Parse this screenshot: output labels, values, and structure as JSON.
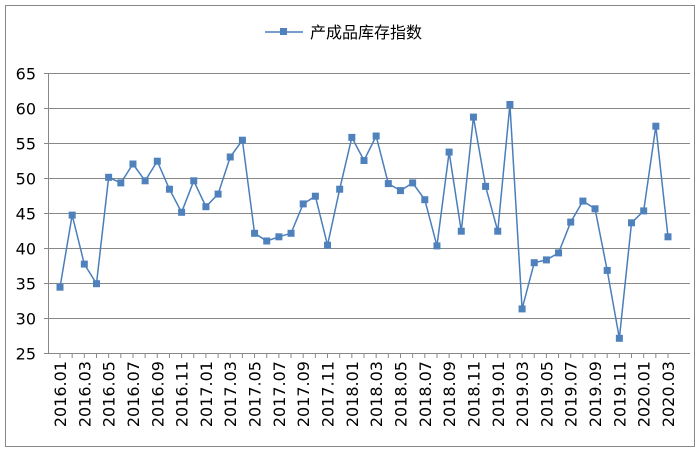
{
  "chart_data": {
    "type": "line",
    "title": "",
    "legend": [
      {
        "name": "产成品库存指数",
        "position": "top"
      }
    ],
    "xlabel": "",
    "ylabel": "",
    "ylim": [
      25,
      65
    ],
    "yticks": [
      25,
      30,
      35,
      40,
      45,
      50,
      55,
      60,
      65
    ],
    "grid": true,
    "color": "#4a7ebb",
    "x": [
      "2016.01",
      "2016.02",
      "2016.03",
      "2016.04",
      "2016.05",
      "2016.06",
      "2016.07",
      "2016.08",
      "2016.09",
      "2016.10",
      "2016.11",
      "2016.12",
      "2017.01",
      "2017.02",
      "2017.03",
      "2017.04",
      "2017.05",
      "2017.06",
      "2017.07",
      "2017.08",
      "2017.09",
      "2017.10",
      "2017.11",
      "2017.12",
      "2018.01",
      "2018.02",
      "2018.03",
      "2018.04",
      "2018.05",
      "2018.06",
      "2018.07",
      "2018.08",
      "2018.09",
      "2018.10",
      "2018.11",
      "2018.12",
      "2019.01",
      "2019.02",
      "2019.03",
      "2019.04",
      "2019.05",
      "2019.06",
      "2019.07",
      "2019.08",
      "2019.09",
      "2019.10",
      "2019.11",
      "2019.12",
      "2020.01",
      "2020.02",
      "2020.03"
    ],
    "series": [
      {
        "name": "产成品库存指数",
        "values": [
          34.4,
          44.7,
          37.7,
          34.9,
          50.1,
          49.3,
          52.0,
          49.6,
          52.4,
          48.4,
          45.1,
          49.6,
          45.9,
          47.7,
          53.0,
          55.4,
          42.1,
          41.0,
          41.6,
          42.1,
          46.3,
          47.4,
          40.4,
          48.4,
          55.8,
          52.5,
          56.0,
          49.2,
          48.2,
          49.3,
          46.9,
          40.3,
          53.7,
          42.4,
          58.7,
          48.8,
          42.4,
          60.5,
          31.3,
          37.9,
          38.3,
          39.3,
          43.7,
          46.7,
          45.6,
          36.8,
          27.1,
          43.6,
          45.3,
          57.4,
          41.6
        ]
      }
    ]
  }
}
